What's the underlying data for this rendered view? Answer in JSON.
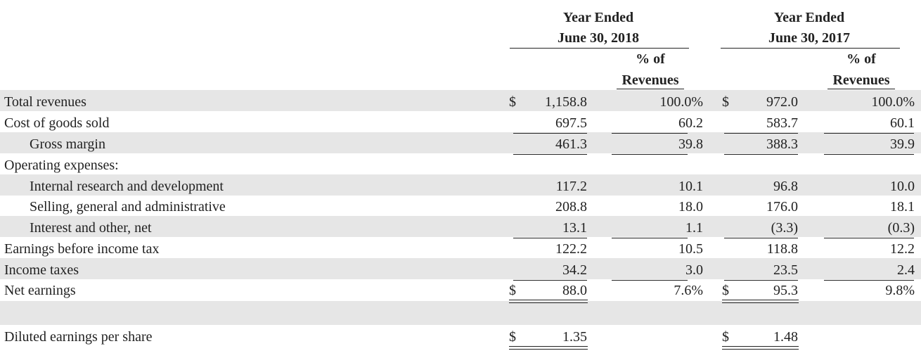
{
  "header": {
    "col2018": {
      "period": "Year Ended",
      "date": "June 30, 2018",
      "pct_top": "% of",
      "pct_bottom": "Revenues"
    },
    "col2017": {
      "period": "Year Ended",
      "date": "June 30, 2017",
      "pct_top": "% of",
      "pct_bottom": "Revenues"
    }
  },
  "table": {
    "rows": [
      {
        "label": "Total revenues",
        "d18": "$",
        "v18": "1,158.8",
        "p18": "100.0%",
        "d17": "$",
        "v17": "972.0",
        "p17": "100.0%"
      },
      {
        "label": "Cost of goods sold",
        "v18": "697.5",
        "p18": "60.2",
        "v17": "583.7",
        "p17": "60.1"
      },
      {
        "label": "Gross margin",
        "v18": "461.3",
        "p18": "39.8",
        "v17": "388.3",
        "p17": "39.9"
      },
      {
        "label": "Operating expenses:"
      },
      {
        "label": "Internal research and development",
        "v18": "117.2",
        "p18": "10.1",
        "v17": "96.8",
        "p17": "10.0"
      },
      {
        "label": "Selling, general and administrative",
        "v18": "208.8",
        "p18": "18.0",
        "v17": "176.0",
        "p17": "18.1"
      },
      {
        "label": "Interest and other, net",
        "v18": "13.1",
        "p18": "1.1",
        "v17": "(3.3)",
        "p17": "(0.3)"
      },
      {
        "label": "Earnings before income tax",
        "v18": "122.2",
        "p18": "10.5",
        "v17": "118.8",
        "p17": "12.2"
      },
      {
        "label": "Income taxes",
        "v18": "34.2",
        "p18": "3.0",
        "v17": "23.5",
        "p17": "2.4"
      },
      {
        "label": "Net earnings",
        "d18": "$",
        "v18": "88.0",
        "p18": "7.6%",
        "d17": "$",
        "v17": "95.3",
        "p17": "9.8%"
      },
      {
        "label": "Diluted earnings per share",
        "d18": "$",
        "v18": "1.35",
        "d17": "$",
        "v17": "1.48"
      }
    ]
  }
}
